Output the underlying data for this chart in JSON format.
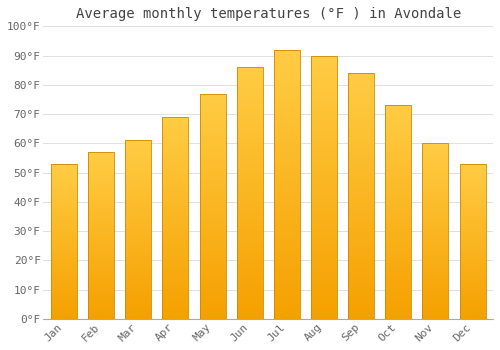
{
  "title": "Average monthly temperatures (°F ) in Avondale",
  "months": [
    "Jan",
    "Feb",
    "Mar",
    "Apr",
    "May",
    "Jun",
    "Jul",
    "Aug",
    "Sep",
    "Oct",
    "Nov",
    "Dec"
  ],
  "values": [
    53,
    57,
    61,
    69,
    77,
    86,
    92,
    90,
    84,
    73,
    60,
    53
  ],
  "bar_color_top": "#FFCC44",
  "bar_color_bottom": "#F5A000",
  "bar_edge_color": "#CC8800",
  "background_color": "#FFFFFF",
  "plot_bg_color": "#FFFFFF",
  "grid_color": "#E0E0E0",
  "ylim": [
    0,
    100
  ],
  "title_fontsize": 10,
  "tick_fontsize": 8,
  "title_color": "#444444",
  "tick_color": "#666666",
  "font_family": "monospace"
}
